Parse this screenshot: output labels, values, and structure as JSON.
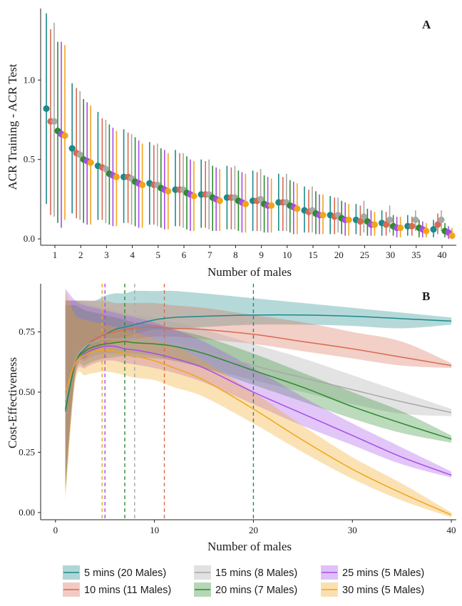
{
  "colors": {
    "5": "#1a8a8a",
    "10": "#d86a50",
    "15": "#a8a8a8",
    "20": "#2e8b2e",
    "25": "#a64de8",
    "30": "#f2a51a"
  },
  "legend": [
    {
      "key": "5",
      "label": "5 mins (20 Males)"
    },
    {
      "key": "15",
      "label": "15 mins (8 Males)"
    },
    {
      "key": "25",
      "label": "25 mins (5 Males)"
    },
    {
      "key": "10",
      "label": "10 mins (11 Males)"
    },
    {
      "key": "20",
      "label": "20 mins (7 Males)"
    },
    {
      "key": "30",
      "label": "30 mins (5 Males)"
    }
  ],
  "chart_data": [
    {
      "panel": "A",
      "type": "scatter",
      "ylabel": "ACR Training - ACR Test",
      "xlabel": "Number of males",
      "ylim": [
        -0.04,
        1.45
      ],
      "yticks": [
        0.0,
        0.5,
        1.0
      ],
      "ytick_labels": [
        "0.0",
        "0.5",
        "1.0"
      ],
      "categories": [
        "1",
        "2",
        "3",
        "4",
        "5",
        "6",
        "7",
        "8",
        "9",
        "10",
        "15",
        "20",
        "25",
        "30",
        "35",
        "40"
      ],
      "series": [
        {
          "key": "5",
          "mean": [
            0.82,
            0.57,
            0.46,
            0.39,
            0.35,
            0.31,
            0.28,
            0.26,
            0.24,
            0.23,
            0.18,
            0.15,
            0.12,
            0.1,
            0.08,
            0.06
          ],
          "lo": [
            0.22,
            0.16,
            0.12,
            0.1,
            0.09,
            0.08,
            0.07,
            0.06,
            0.05,
            0.05,
            0.04,
            0.03,
            0.03,
            0.02,
            0.02,
            0.01
          ],
          "hi": [
            1.42,
            0.98,
            0.8,
            0.69,
            0.61,
            0.56,
            0.5,
            0.46,
            0.43,
            0.41,
            0.33,
            0.27,
            0.22,
            0.18,
            0.15,
            0.12
          ]
        },
        {
          "key": "10",
          "mean": [
            0.74,
            0.54,
            0.45,
            0.39,
            0.34,
            0.31,
            0.28,
            0.26,
            0.24,
            0.23,
            0.17,
            0.14,
            0.11,
            0.09,
            0.08,
            0.09
          ],
          "lo": [
            0.15,
            0.13,
            0.12,
            0.1,
            0.09,
            0.08,
            0.07,
            0.06,
            0.05,
            0.05,
            0.04,
            0.03,
            0.02,
            0.02,
            0.02,
            0.03
          ],
          "hi": [
            1.32,
            0.95,
            0.76,
            0.67,
            0.59,
            0.54,
            0.49,
            0.45,
            0.42,
            0.39,
            0.31,
            0.26,
            0.21,
            0.17,
            0.14,
            0.16
          ]
        },
        {
          "key": "15",
          "mean": [
            0.74,
            0.53,
            0.44,
            0.38,
            0.34,
            0.31,
            0.28,
            0.26,
            0.25,
            0.23,
            0.18,
            0.15,
            0.14,
            0.12,
            0.12,
            0.12
          ],
          "lo": [
            0.14,
            0.12,
            0.1,
            0.09,
            0.08,
            0.07,
            0.06,
            0.06,
            0.05,
            0.05,
            0.04,
            0.04,
            0.04,
            0.04,
            0.05,
            0.05
          ],
          "hi": [
            1.36,
            0.93,
            0.75,
            0.66,
            0.6,
            0.54,
            0.5,
            0.46,
            0.44,
            0.41,
            0.33,
            0.26,
            0.24,
            0.21,
            0.18,
            0.18
          ]
        },
        {
          "key": "20",
          "mean": [
            0.68,
            0.5,
            0.41,
            0.36,
            0.32,
            0.29,
            0.26,
            0.24,
            0.22,
            0.21,
            0.16,
            0.13,
            0.11,
            0.08,
            0.07,
            0.05
          ],
          "lo": [
            0.1,
            0.1,
            0.09,
            0.08,
            0.07,
            0.06,
            0.05,
            0.05,
            0.04,
            0.04,
            0.03,
            0.03,
            0.02,
            0.02,
            0.01,
            0.01
          ],
          "hi": [
            1.24,
            0.88,
            0.72,
            0.64,
            0.57,
            0.52,
            0.46,
            0.43,
            0.4,
            0.37,
            0.3,
            0.24,
            0.19,
            0.15,
            0.12,
            0.1
          ]
        },
        {
          "key": "25",
          "mean": [
            0.66,
            0.49,
            0.4,
            0.35,
            0.31,
            0.28,
            0.25,
            0.23,
            0.21,
            0.2,
            0.15,
            0.12,
            0.09,
            0.07,
            0.06,
            0.04
          ],
          "lo": [
            0.07,
            0.09,
            0.08,
            0.07,
            0.06,
            0.05,
            0.05,
            0.04,
            0.04,
            0.03,
            0.03,
            0.02,
            0.02,
            0.01,
            0.01,
            0.0
          ],
          "hi": [
            1.24,
            0.86,
            0.7,
            0.62,
            0.56,
            0.5,
            0.45,
            0.42,
            0.39,
            0.36,
            0.28,
            0.23,
            0.18,
            0.14,
            0.11,
            0.08
          ]
        },
        {
          "key": "30",
          "mean": [
            0.65,
            0.48,
            0.39,
            0.34,
            0.3,
            0.27,
            0.24,
            0.22,
            0.21,
            0.19,
            0.15,
            0.12,
            0.09,
            0.07,
            0.05,
            0.02
          ],
          "lo": [
            0.12,
            0.09,
            0.08,
            0.07,
            0.06,
            0.05,
            0.05,
            0.04,
            0.04,
            0.03,
            0.03,
            0.02,
            0.02,
            0.01,
            0.01,
            0.0
          ],
          "hi": [
            1.22,
            0.84,
            0.68,
            0.6,
            0.54,
            0.49,
            0.44,
            0.41,
            0.38,
            0.35,
            0.28,
            0.22,
            0.17,
            0.14,
            0.1,
            0.07
          ]
        }
      ]
    },
    {
      "panel": "B",
      "type": "line",
      "ylabel": "Cost-Effectiveness",
      "xlabel": "Number of males",
      "xlim": [
        -1.5,
        40.5
      ],
      "ylim": [
        -0.03,
        0.95
      ],
      "xticks": [
        0,
        10,
        20,
        30,
        40
      ],
      "xtick_labels": [
        "0",
        "10",
        "20",
        "30",
        "40"
      ],
      "yticks": [
        0.0,
        0.25,
        0.5,
        0.75
      ],
      "ytick_labels": [
        "0.00",
        "0.25",
        "0.50",
        "0.75"
      ],
      "series": [
        {
          "key": "5",
          "optimum": 20,
          "x": [
            1,
            2,
            3,
            4,
            5,
            6,
            7,
            8,
            10,
            12,
            15,
            20,
            25,
            30,
            35,
            40
          ],
          "y": [
            0.42,
            0.62,
            0.68,
            0.72,
            0.74,
            0.76,
            0.77,
            0.78,
            0.8,
            0.81,
            0.815,
            0.82,
            0.82,
            0.815,
            0.805,
            0.795
          ],
          "lo": [
            0.1,
            0.6,
            0.64,
            0.68,
            0.7,
            0.72,
            0.73,
            0.74,
            0.76,
            0.76,
            0.77,
            0.78,
            0.78,
            0.775,
            0.765,
            0.78
          ],
          "hi": [
            0.88,
            0.88,
            0.88,
            0.88,
            0.9,
            0.91,
            0.91,
            0.92,
            0.92,
            0.92,
            0.91,
            0.89,
            0.87,
            0.85,
            0.83,
            0.81
          ]
        },
        {
          "key": "10",
          "optimum": 11,
          "x": [
            1,
            2,
            3,
            4,
            5,
            6,
            7,
            8,
            10,
            12,
            15,
            20,
            25,
            30,
            35,
            40
          ],
          "y": [
            0.46,
            0.63,
            0.69,
            0.72,
            0.74,
            0.75,
            0.76,
            0.765,
            0.77,
            0.765,
            0.76,
            0.74,
            0.71,
            0.68,
            0.645,
            0.61
          ],
          "lo": [
            0.08,
            0.58,
            0.64,
            0.67,
            0.69,
            0.7,
            0.71,
            0.72,
            0.73,
            0.73,
            0.72,
            0.7,
            0.67,
            0.64,
            0.61,
            0.6
          ],
          "hi": [
            0.88,
            0.88,
            0.88,
            0.88,
            0.88,
            0.87,
            0.87,
            0.87,
            0.87,
            0.86,
            0.85,
            0.82,
            0.79,
            0.75,
            0.71,
            0.62
          ]
        },
        {
          "key": "15",
          "optimum": 8,
          "x": [
            1,
            2,
            3,
            4,
            5,
            6,
            7,
            8,
            10,
            12,
            15,
            20,
            25,
            30,
            35,
            40
          ],
          "y": [
            0.46,
            0.63,
            0.69,
            0.71,
            0.72,
            0.72,
            0.72,
            0.72,
            0.71,
            0.7,
            0.67,
            0.61,
            0.56,
            0.51,
            0.46,
            0.415
          ],
          "lo": [
            0.09,
            0.58,
            0.63,
            0.65,
            0.66,
            0.66,
            0.66,
            0.66,
            0.65,
            0.63,
            0.6,
            0.55,
            0.5,
            0.45,
            0.41,
            0.4
          ],
          "hi": [
            0.88,
            0.88,
            0.87,
            0.86,
            0.85,
            0.84,
            0.83,
            0.82,
            0.81,
            0.79,
            0.76,
            0.7,
            0.64,
            0.57,
            0.5,
            0.43
          ]
        },
        {
          "key": "20",
          "optimum": 7,
          "x": [
            1,
            2,
            3,
            4,
            5,
            6,
            7,
            8,
            10,
            12,
            15,
            20,
            25,
            30,
            35,
            40
          ],
          "y": [
            0.43,
            0.62,
            0.67,
            0.69,
            0.7,
            0.705,
            0.71,
            0.705,
            0.7,
            0.69,
            0.66,
            0.59,
            0.52,
            0.44,
            0.37,
            0.305
          ],
          "lo": [
            0.1,
            0.57,
            0.61,
            0.63,
            0.64,
            0.645,
            0.65,
            0.645,
            0.64,
            0.63,
            0.6,
            0.53,
            0.46,
            0.39,
            0.33,
            0.29
          ],
          "hi": [
            0.86,
            0.86,
            0.84,
            0.83,
            0.82,
            0.81,
            0.8,
            0.79,
            0.78,
            0.76,
            0.73,
            0.66,
            0.58,
            0.5,
            0.42,
            0.32
          ]
        },
        {
          "key": "25",
          "optimum": 5,
          "x": [
            1,
            2,
            3,
            4,
            5,
            6,
            7,
            8,
            10,
            12,
            15,
            20,
            25,
            30,
            35,
            40
          ],
          "y": [
            0.5,
            0.62,
            0.66,
            0.68,
            0.69,
            0.69,
            0.68,
            0.675,
            0.66,
            0.64,
            0.6,
            0.5,
            0.41,
            0.32,
            0.23,
            0.155
          ],
          "lo": [
            0.14,
            0.56,
            0.6,
            0.62,
            0.63,
            0.63,
            0.62,
            0.615,
            0.6,
            0.58,
            0.54,
            0.45,
            0.36,
            0.28,
            0.2,
            0.145
          ],
          "hi": [
            0.93,
            0.88,
            0.86,
            0.85,
            0.84,
            0.83,
            0.82,
            0.81,
            0.79,
            0.76,
            0.71,
            0.6,
            0.48,
            0.37,
            0.27,
            0.17
          ]
        },
        {
          "key": "30",
          "optimum": 5,
          "x": [
            1,
            2,
            3,
            4,
            5,
            6,
            7,
            8,
            10,
            12,
            15,
            20,
            25,
            30,
            35,
            40
          ],
          "y": [
            0.5,
            0.62,
            0.655,
            0.67,
            0.675,
            0.67,
            0.66,
            0.65,
            0.63,
            0.6,
            0.55,
            0.43,
            0.3,
            0.18,
            0.08,
            -0.01
          ],
          "lo": [
            0.05,
            0.54,
            0.57,
            0.58,
            0.585,
            0.58,
            0.57,
            0.56,
            0.55,
            0.52,
            0.48,
            0.37,
            0.25,
            0.14,
            0.05,
            -0.02
          ],
          "hi": [
            0.92,
            0.82,
            0.8,
            0.79,
            0.78,
            0.77,
            0.76,
            0.75,
            0.72,
            0.69,
            0.63,
            0.5,
            0.36,
            0.23,
            0.12,
            0.0
          ]
        }
      ]
    }
  ],
  "panelA": {
    "label": "A",
    "ylabel": "ACR Training - ACR Test",
    "xlabel": "Number of males"
  },
  "panelB": {
    "label": "B",
    "ylabel": "Cost-Effectiveness",
    "xlabel": "Number of males"
  }
}
